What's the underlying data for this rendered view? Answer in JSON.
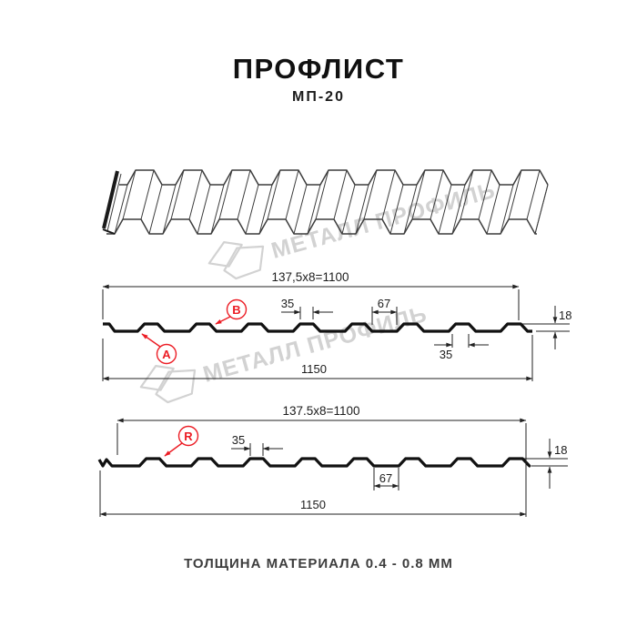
{
  "header": {
    "title": "ПРОФЛИСТ",
    "subtitle": "МП-20"
  },
  "watermark": {
    "text": "МЕТАЛЛ ПРОФИЛЬ"
  },
  "profile_top": {
    "width_formula": "137,5x8=1100",
    "rib_top_width": "35",
    "valley_width": "67",
    "height": "18",
    "rib_bottom_width": "35",
    "total_width": "1150",
    "label_a": "A",
    "label_b": "B"
  },
  "profile_bottom": {
    "width_formula": "137.5x8=1100",
    "rib_top_width": "35",
    "valley_width": "67",
    "height": "18",
    "total_width": "1150",
    "label_r": "R"
  },
  "footer": {
    "text": "ТОЛЩИНА МАТЕРИАЛА 0.4 - 0.8 ММ"
  },
  "colors": {
    "accent_red": "#EC1C24",
    "watermark_gray": "#D2D2D2",
    "line_black": "#1A1A1A"
  }
}
